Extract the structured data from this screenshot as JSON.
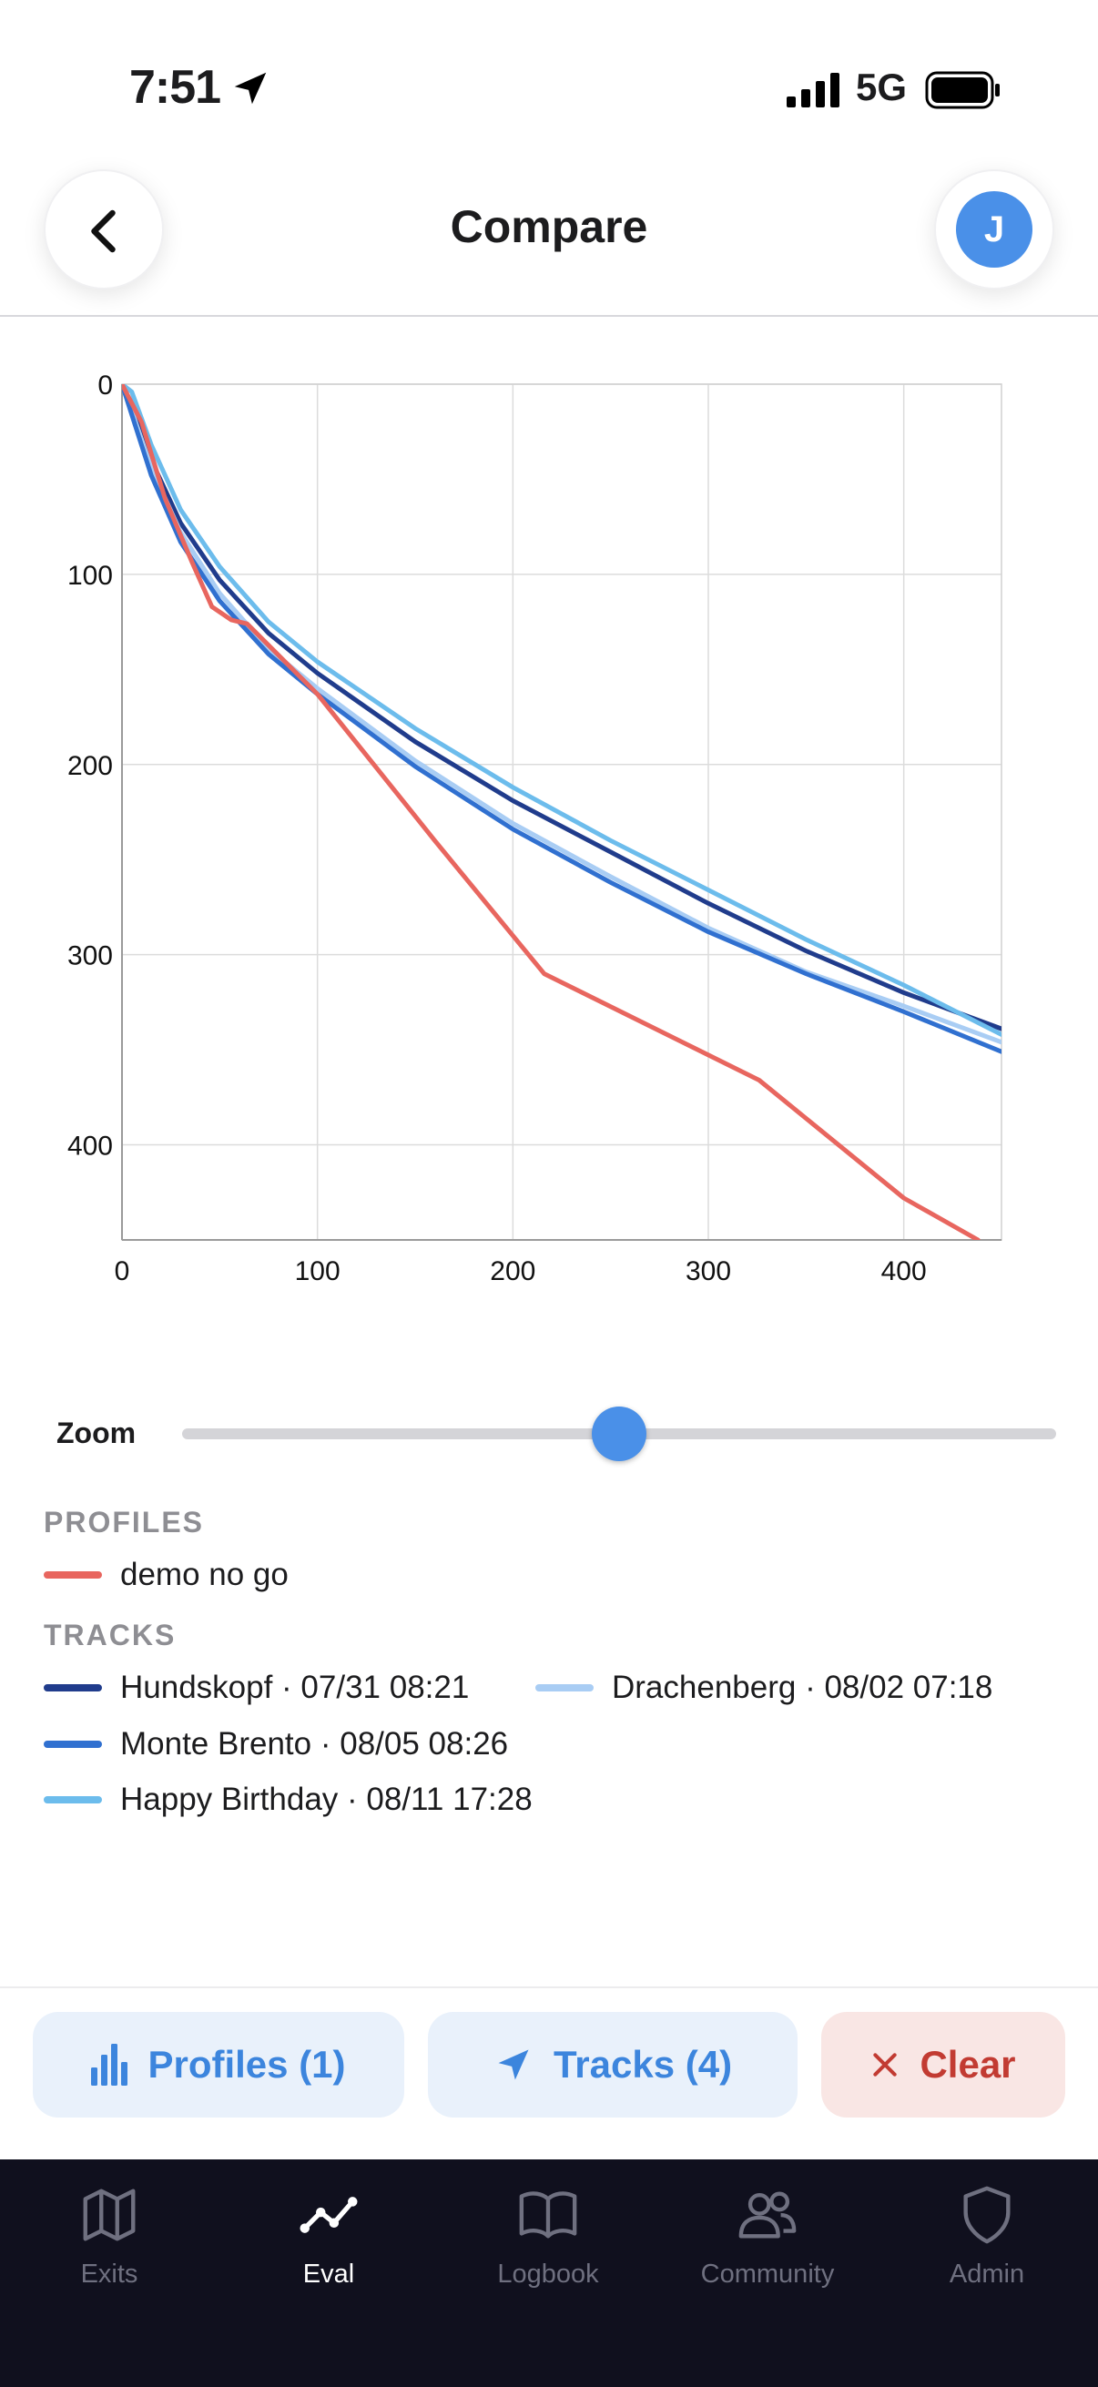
{
  "status_bar": {
    "time": "7:51",
    "network": "5G"
  },
  "header": {
    "title": "Compare",
    "avatar_initial": "J"
  },
  "chart_data": {
    "type": "line",
    "title": "",
    "xlabel": "",
    "ylabel": "",
    "xlim": [
      0,
      450
    ],
    "ylim": [
      0,
      450
    ],
    "y_inverted": true,
    "grid": true,
    "x_ticks": [
      0,
      100,
      200,
      300,
      400
    ],
    "y_ticks": [
      0,
      100,
      200,
      300,
      400
    ],
    "series": [
      {
        "name": "demo no go",
        "color": "#e8665f",
        "group": "profile",
        "x": [
          0,
          10,
          22,
          36,
          46,
          56,
          64,
          100,
          160,
          216,
          326,
          400,
          438
        ],
        "y": [
          0,
          20,
          60,
          94,
          117,
          124,
          126,
          163,
          240,
          310,
          366,
          428,
          450
        ]
      },
      {
        "name": "Hundskopf · 07/31 08:21",
        "color": "#203c8c",
        "group": "track",
        "x": [
          0,
          5,
          15,
          30,
          50,
          75,
          100,
          150,
          200,
          250,
          300,
          350,
          400,
          450
        ],
        "y": [
          0,
          12,
          40,
          73,
          103,
          131,
          152,
          188,
          219,
          246,
          273,
          298,
          320,
          339
        ]
      },
      {
        "name": "Drachenberg · 08/02 07:18",
        "color": "#a9cdf4",
        "group": "track",
        "x": [
          0,
          5,
          15,
          30,
          50,
          75,
          100,
          150,
          200,
          250,
          300,
          350,
          400,
          450
        ],
        "y": [
          0,
          14,
          44,
          78,
          110,
          139,
          160,
          198,
          231,
          259,
          286,
          309,
          327,
          346
        ]
      },
      {
        "name": "Monte Brento · 08/05 08:26",
        "color": "#3070d0",
        "group": "track",
        "x": [
          0,
          5,
          15,
          30,
          50,
          75,
          100,
          150,
          200,
          250,
          300,
          350,
          400,
          450
        ],
        "y": [
          0,
          16,
          48,
          83,
          114,
          142,
          163,
          201,
          234,
          262,
          288,
          310,
          330,
          351
        ]
      },
      {
        "name": "Happy Birthday · 08/11 17:28",
        "color": "#6cbcec",
        "group": "track",
        "x": [
          0,
          5,
          15,
          30,
          50,
          75,
          100,
          150,
          200,
          250,
          300,
          350,
          400,
          450
        ],
        "y": [
          0,
          4,
          32,
          66,
          96,
          125,
          146,
          181,
          212,
          240,
          266,
          292,
          316,
          342
        ]
      }
    ]
  },
  "zoom": {
    "label": "Zoom",
    "value_fraction": 0.5
  },
  "legend": {
    "profiles_heading": "PROFILES",
    "profiles": [
      {
        "label": "demo no go",
        "color": "#e8665f"
      }
    ],
    "tracks_heading": "TRACKS",
    "tracks": [
      {
        "label": "Hundskopf · 07/31 08:21",
        "color": "#203c8c"
      },
      {
        "label": "Drachenberg · 08/02 07:18",
        "color": "#a9cdf4"
      },
      {
        "label": "Monte Brento · 08/05 08:26",
        "color": "#3070d0"
      },
      {
        "label": "Happy Birthday · 08/11 17:28",
        "color": "#6cbcec"
      }
    ]
  },
  "actions": {
    "profiles_label": "Profiles (1)",
    "tracks_label": "Tracks (4)",
    "clear_label": "Clear"
  },
  "tabbar": {
    "active": "Eval",
    "tabs": [
      {
        "label": "Exits",
        "icon": "map-icon"
      },
      {
        "label": "Eval",
        "icon": "chart-line-icon"
      },
      {
        "label": "Logbook",
        "icon": "book-icon"
      },
      {
        "label": "Community",
        "icon": "users-icon"
      },
      {
        "label": "Admin",
        "icon": "shield-icon"
      }
    ]
  },
  "colors": {
    "accent": "#4a90e8",
    "danger": "#c23b32",
    "tabbar_bg": "#10101e"
  }
}
